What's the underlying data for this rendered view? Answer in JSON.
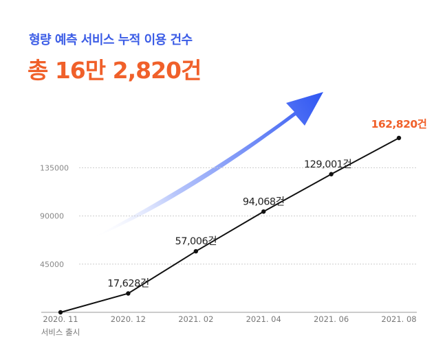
{
  "header": {
    "subtitle": "형량 예측 서비스 누적 이용 건수",
    "headline": "총 16만 2,820건"
  },
  "colors": {
    "accent_blue": "#3b5ce6",
    "accent_orange": "#f0602a",
    "line": "#111111",
    "grid": "#cccccc"
  },
  "chart_data": {
    "type": "line",
    "title": "",
    "xlabel": "",
    "ylabel": "",
    "grid": true,
    "ylim": [
      0,
      162820
    ],
    "yticks": [
      45000,
      90000,
      135000
    ],
    "ytick_labels": [
      "45000",
      "90000",
      "135000"
    ],
    "x": [
      "2020.11",
      "2020.12",
      "2021.02",
      "2021.04",
      "2021.06",
      "2021.08"
    ],
    "xtick_labels": [
      "2020. 11",
      "2020. 12",
      "2021. 02",
      "2021. 04",
      "2021. 06",
      "2021. 08"
    ],
    "xtick_sublabels": [
      "서비스 출시",
      "",
      "",
      "",
      "",
      ""
    ],
    "series": [
      {
        "values": [
          0,
          17628,
          57006,
          94068,
          129001,
          162820
        ]
      }
    ],
    "data_labels": [
      "",
      "17,628건",
      "57,006건",
      "94,068건",
      "129,001건",
      "162,820건"
    ],
    "highlight_index": 5,
    "annotation": "arrow-up-icon"
  }
}
